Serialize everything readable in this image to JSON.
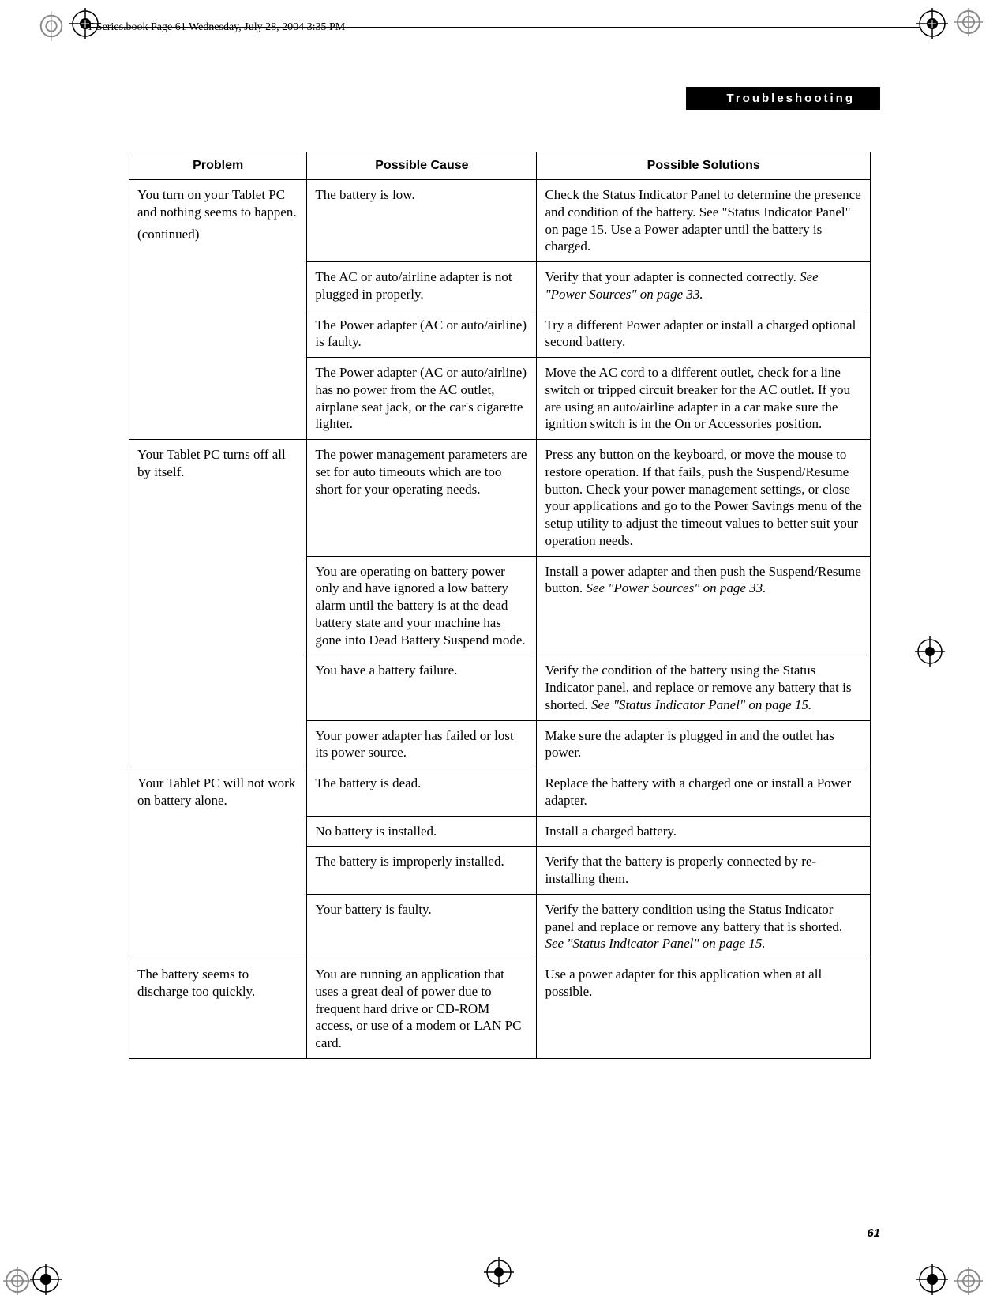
{
  "header": {
    "book_info": "T Series.book  Page 61  Wednesday, July 28, 2004  3:35 PM",
    "section_title": "Troubleshooting"
  },
  "table": {
    "headers": {
      "problem": "Problem",
      "cause": "Possible Cause",
      "solution": "Possible Solutions"
    },
    "rows": [
      {
        "problem": "You turn on your Tablet PC and nothing seems to happen.\n(continued)",
        "problem_rowspan": 4,
        "cause": "The battery is low.",
        "solution": "Check the Status Indicator Panel to determine the presence and condition of the battery. See \"Status Indicator Panel\" on page 15. Use a Power adapter until the battery is charged."
      },
      {
        "cause": "The AC or auto/airline adapter is not plugged in properly.",
        "solution_html": "Verify that your adapter is connected correctly. <span class=\"italic\">See \"Power Sources\" on page 33.</span>"
      },
      {
        "cause": "The Power adapter (AC or auto/airline) is faulty.",
        "solution": "Try a different Power adapter or install a charged optional second battery."
      },
      {
        "cause": "The Power adapter (AC or auto/airline) has no power from the AC outlet, airplane seat jack, or the car's cigarette lighter.",
        "solution": "Move the AC cord to a different outlet, check for a line switch or tripped circuit breaker for the AC outlet. If you are using an auto/airline adapter in a car make sure the ignition switch is in the On or Accessories position."
      },
      {
        "problem": "Your Tablet PC turns off all by itself.",
        "problem_rowspan": 4,
        "cause": "The power management parameters are set for auto timeouts which are too short for your operating needs.",
        "solution": "Press any button on the keyboard, or move the mouse to restore operation. If that fails, push the Suspend/Resume button. Check your power management settings, or close your applications and go to the Power Savings menu of the setup utility to adjust the timeout values to better suit your operation needs."
      },
      {
        "cause": "You are operating on battery power only and have ignored a low battery alarm until the battery is at the dead battery state and your machine has gone into Dead Battery Suspend mode.",
        "solution_html": "Install a power adapter and then push the Suspend/Resume button. <span class=\"italic\">See \"Power Sources\" on page 33.</span>"
      },
      {
        "cause": "You have a battery failure.",
        "solution_html": "Verify the condition of the battery using the Status Indicator panel, and replace or remove any battery that is shorted. <span class=\"italic\">See \"Status Indicator Panel\" on page 15.</span>"
      },
      {
        "cause": "Your power adapter has failed or lost its power source.",
        "solution": "Make sure the adapter is plugged in and the outlet has power."
      },
      {
        "problem": "Your Tablet PC will not work on battery alone.",
        "problem_rowspan": 4,
        "cause": "The battery is dead.",
        "solution": "Replace the battery with a charged one or install a Power adapter."
      },
      {
        "cause": "No battery is installed.",
        "solution": "Install a charged battery."
      },
      {
        "cause": "The battery is improperly installed.",
        "solution": "Verify that the battery is properly connected by re-installing them."
      },
      {
        "cause": "Your battery is faulty.",
        "solution_html": "Verify the battery condition using the Status Indicator panel and replace or remove any battery that is shorted. <span class=\"italic\">See \"Status Indicator Panel\" on page 15.</span>"
      },
      {
        "problem": "The battery seems to discharge too quickly.",
        "problem_rowspan": 1,
        "cause": "You are running an application that uses a great deal of power due to frequent hard drive or CD-ROM access, or use of a modem or LAN PC card.",
        "solution": "Use a power adapter for this application when at all possible."
      }
    ]
  },
  "page_number": "61"
}
